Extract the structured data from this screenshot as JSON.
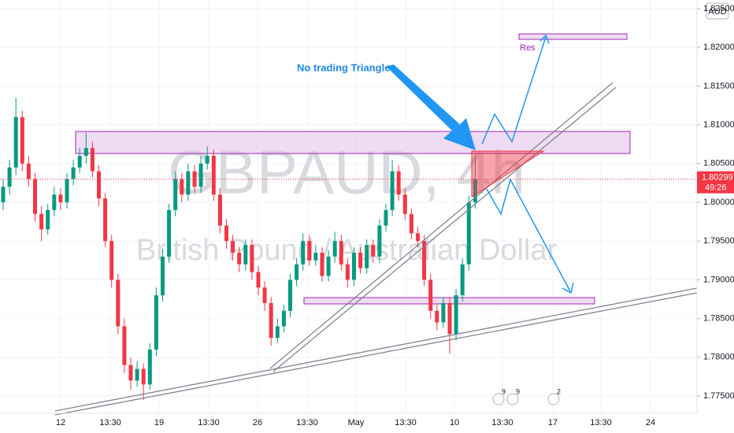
{
  "chart_data": {
    "type": "candlestick",
    "symbol": "GBPAUD, 4h",
    "description": "British Pound / Australian Dollar",
    "currency": "AUD",
    "annotation": "No trading Triangle",
    "zone_label": "Res",
    "countdown": "49:26",
    "event_badges": [
      "9",
      "9",
      "2"
    ],
    "x_labels": [
      "12",
      "13:30",
      "19",
      "13:30",
      "26",
      "13:30",
      "May",
      "13:30",
      "10",
      "13:30",
      "17",
      "13:30",
      "24"
    ],
    "ylim": [
      1.77277,
      1.82611
    ],
    "yticks": [
      {
        "value": 1.775,
        "label": "1.77500"
      },
      {
        "value": 1.78,
        "label": "1.78000"
      },
      {
        "value": 1.785,
        "label": "1.78500"
      },
      {
        "value": 1.79,
        "label": "1.79000"
      },
      {
        "value": 1.795,
        "label": "1.79500"
      },
      {
        "value": 1.8,
        "label": "1.80000"
      },
      {
        "value": 1.805,
        "label": "1.80500"
      },
      {
        "value": 1.81,
        "label": "1.81000"
      },
      {
        "value": 1.815,
        "label": "1.81500"
      },
      {
        "value": 1.82,
        "label": "1.82000"
      },
      {
        "value": 1.825,
        "label": "1.82500"
      }
    ],
    "grid": true,
    "up_color": "#089981",
    "down_color": "#f23645",
    "open": [
      1.8,
      1.802,
      1.8045,
      1.811,
      1.805,
      1.803,
      1.7985,
      1.7965,
      1.799,
      1.801,
      1.8,
      1.803,
      1.8045,
      1.806,
      1.807,
      1.804,
      1.8005,
      1.795,
      1.79,
      1.784,
      1.779,
      1.777,
      1.7785,
      1.7765,
      1.781,
      1.788,
      1.793,
      1.799,
      1.803,
      1.801,
      1.804,
      1.802,
      1.805,
      1.806,
      1.801,
      1.797,
      1.795,
      1.7935,
      1.792,
      1.7945,
      1.791,
      1.789,
      1.787,
      1.7825,
      1.784,
      1.786,
      1.79,
      1.792,
      1.795,
      1.7925,
      1.7935,
      1.7905,
      1.793,
      1.795,
      1.792,
      1.79,
      1.7935,
      1.7915,
      1.7945,
      1.793,
      1.797,
      1.799,
      1.804,
      1.801,
      1.7985,
      1.796,
      1.795,
      1.79,
      1.786,
      1.7845,
      1.787,
      1.783,
      1.788,
      1.792,
      1.8
    ],
    "high": [
      1.803,
      1.8055,
      1.8135,
      1.8118,
      1.806,
      1.8038,
      1.7995,
      1.7998,
      1.802,
      1.8018,
      1.8038,
      1.8055,
      1.807,
      1.809,
      1.8078,
      1.8048,
      1.8012,
      1.7958,
      1.7908,
      1.785,
      1.78,
      1.7795,
      1.7792,
      1.7818,
      1.789,
      1.794,
      1.7998,
      1.804,
      1.8038,
      1.805,
      1.8048,
      1.806,
      1.8072,
      1.8068,
      1.8018,
      1.7978,
      1.7958,
      1.7942,
      1.7952,
      1.7952,
      1.7918,
      1.7898,
      1.7878,
      1.785,
      1.7868,
      1.7908,
      1.7928,
      1.796,
      1.7958,
      1.7945,
      1.7942,
      1.7938,
      1.7962,
      1.7958,
      1.7928,
      1.7942,
      1.7942,
      1.7952,
      1.7952,
      1.7978,
      1.7998,
      1.8055,
      1.8048,
      1.8018,
      1.7992,
      1.7968,
      1.7958,
      1.7908,
      1.7868,
      1.7878,
      1.7878,
      1.7888,
      1.7928,
      1.8008,
      1.806
    ],
    "low": [
      1.799,
      1.801,
      1.8035,
      1.804,
      1.802,
      1.7975,
      1.795,
      1.7958,
      1.7982,
      1.799,
      1.7992,
      1.8022,
      1.8038,
      1.805,
      1.8032,
      1.7995,
      1.7942,
      1.789,
      1.783,
      1.778,
      1.7758,
      1.7762,
      1.7745,
      1.7758,
      1.7802,
      1.7872,
      1.7922,
      1.7982,
      1.8,
      1.8002,
      1.8012,
      1.8012,
      1.8042,
      1.8002,
      1.796,
      1.794,
      1.7925,
      1.791,
      1.7912,
      1.79,
      1.788,
      1.786,
      1.7815,
      1.7818,
      1.7832,
      1.7852,
      1.7892,
      1.7912,
      1.7918,
      1.7918,
      1.7898,
      1.7898,
      1.7922,
      1.7912,
      1.789,
      1.7892,
      1.7908,
      1.7908,
      1.7922,
      1.7922,
      1.7962,
      1.7982,
      1.8002,
      1.7978,
      1.7952,
      1.7942,
      1.7892,
      1.785,
      1.7835,
      1.7838,
      1.7805,
      1.7822,
      1.7872,
      1.7912,
      1.7992
    ],
    "close": [
      1.802,
      1.8045,
      1.811,
      1.805,
      1.803,
      1.7985,
      1.7965,
      1.799,
      1.801,
      1.8,
      1.803,
      1.8045,
      1.806,
      1.807,
      1.804,
      1.8005,
      1.795,
      1.79,
      1.784,
      1.779,
      1.777,
      1.7785,
      1.7765,
      1.781,
      1.788,
      1.793,
      1.799,
      1.803,
      1.801,
      1.804,
      1.802,
      1.805,
      1.806,
      1.801,
      1.797,
      1.795,
      1.7935,
      1.792,
      1.7945,
      1.791,
      1.789,
      1.787,
      1.7825,
      1.784,
      1.786,
      1.79,
      1.792,
      1.795,
      1.7925,
      1.7935,
      1.7905,
      1.793,
      1.795,
      1.792,
      1.79,
      1.7935,
      1.7915,
      1.7945,
      1.793,
      1.797,
      1.799,
      1.804,
      1.801,
      1.7985,
      1.796,
      1.795,
      1.79,
      1.786,
      1.7845,
      1.787,
      1.783,
      1.788,
      1.792,
      1.8,
      1.80299
    ]
  }
}
